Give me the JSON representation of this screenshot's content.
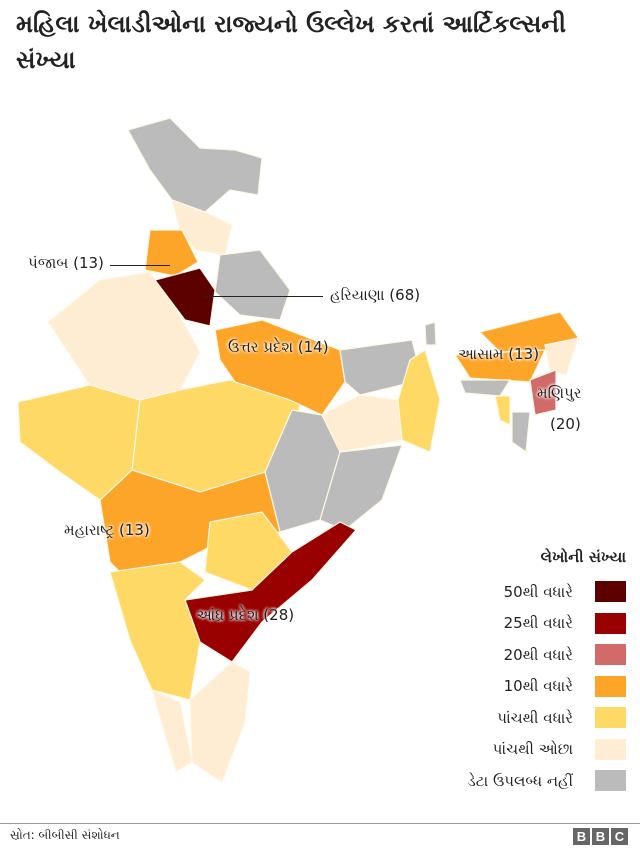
{
  "title": "મહિલા ખેલાડીઓના રાજ્યનો ઉલ્લેખ કરતાં આર્ટિકલ્સની સંખ્યા",
  "colors": {
    "over50": "#5c0000",
    "over25": "#990000",
    "over20": "#d16a68",
    "over10": "#fca529",
    "over5": "#fed966",
    "under5": "#feecd3",
    "nodata": "#bbbbbb"
  },
  "labels": {
    "punjab": "પંજાબ (13)",
    "haryana": "હરિયાણા (68)",
    "up": "ઉત્તર પ્રદેશ (14)",
    "assam": "આસામ (13)",
    "manipur": "મણિપુર",
    "manipur_value": "(20)",
    "maharashtra": "મહારાષ્ટ્ર (13)",
    "andhra": "આંધ્ર પ્રદેશ (28)"
  },
  "legend": {
    "title": "લેખોની સંખ્યા",
    "items": [
      {
        "label": "50થી વધારે",
        "color": "#5c0000"
      },
      {
        "label": "25થી વધારે",
        "color": "#990000"
      },
      {
        "label": "20થી વધારે",
        "color": "#d16a68"
      },
      {
        "label": "10થી વધારે",
        "color": "#fca529"
      },
      {
        "label": "પાંચથી વધારે",
        "color": "#fed966"
      },
      {
        "label": "પાંચથી ઓછા",
        "color": "#feecd3"
      },
      {
        "label": "ડેટા ઉપલબ્ધ નહીં",
        "color": "#bbbbbb"
      }
    ]
  },
  "source": "સ્રોત: બીબીસી સંશોધન",
  "logo": [
    "B",
    "B",
    "C"
  ]
}
